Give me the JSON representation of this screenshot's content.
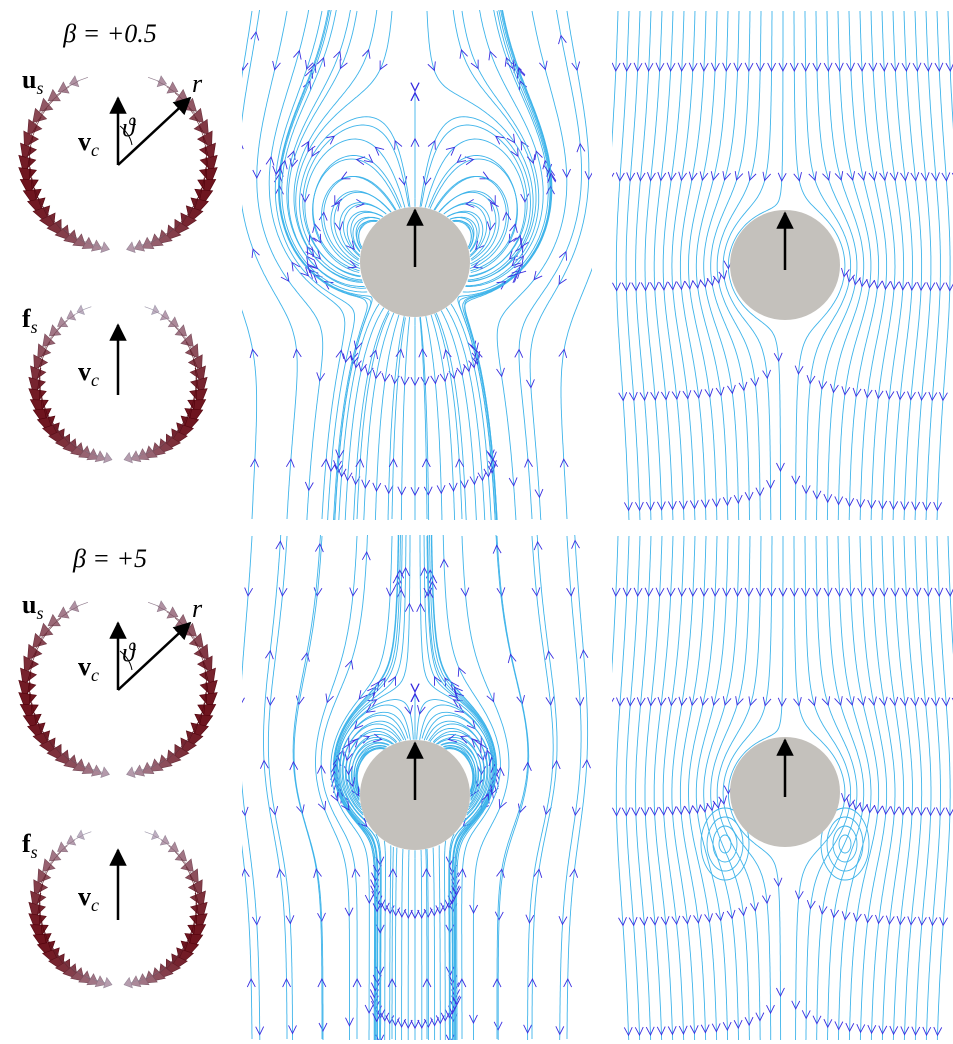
{
  "rows": [
    {
      "beta": "β = +0.5",
      "velocity_panel": {
        "vector_label": "u",
        "vector_subscript": "s",
        "speed_label": "v",
        "speed_subscript": "c",
        "angle_label": "ϑ",
        "radius_label": "r"
      },
      "force_panel": {
        "vector_label": "f",
        "vector_subscript": "s",
        "speed_label": "v",
        "speed_subscript": "c"
      }
    },
    {
      "beta": "β = +5",
      "velocity_panel": {
        "vector_label": "u",
        "vector_subscript": "s",
        "speed_label": "v",
        "speed_subscript": "c",
        "angle_label": "ϑ",
        "radius_label": "r"
      },
      "force_panel": {
        "vector_label": "f",
        "vector_subscript": "s",
        "speed_label": "v",
        "speed_subscript": "c"
      }
    }
  ]
}
